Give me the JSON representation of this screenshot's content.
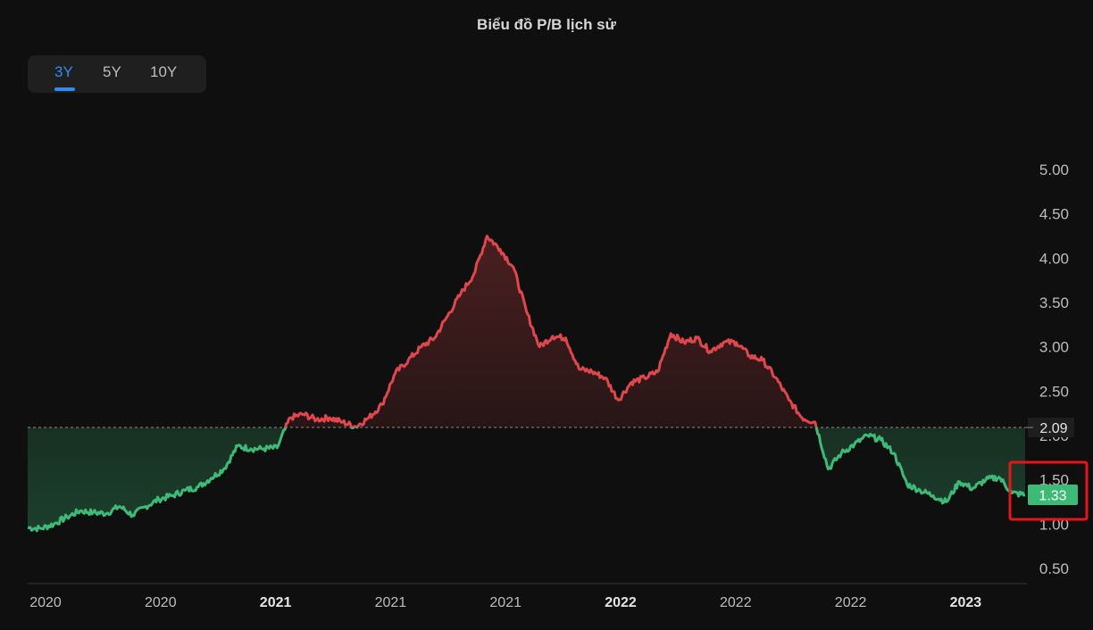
{
  "header": {
    "title": "Biểu đồ P/B lịch sử"
  },
  "range_tabs": [
    {
      "label": "3Y",
      "active": true
    },
    {
      "label": "5Y",
      "active": false
    },
    {
      "label": "10Y",
      "active": false
    }
  ],
  "colors": {
    "background": "#0f0f0f",
    "above_average": "#e0474c",
    "below_average": "#3dbb76",
    "active_tab": "#2f8cf0",
    "highlight_box": "#e5161b"
  },
  "chart_data": {
    "type": "line",
    "title": "Biểu đồ P/B lịch sử",
    "y_tick_labels": [
      "5.00",
      "4.50",
      "4.00",
      "3.50",
      "3.00",
      "2.50",
      "2.00",
      "1.50",
      "1.00",
      "0.50"
    ],
    "x_tick_labels": [
      {
        "label": "2020",
        "bold": false
      },
      {
        "label": "2020",
        "bold": false
      },
      {
        "label": "2021",
        "bold": true
      },
      {
        "label": "2021",
        "bold": false
      },
      {
        "label": "2021",
        "bold": false
      },
      {
        "label": "2022",
        "bold": true
      },
      {
        "label": "2022",
        "bold": false
      },
      {
        "label": "2022",
        "bold": false
      },
      {
        "label": "2023",
        "bold": true
      }
    ],
    "ylim": [
      0.3,
      5.25
    ],
    "average_value": 2.09,
    "average_label": "2.09",
    "current_value": 1.33,
    "current_label": "1.33",
    "series": [
      {
        "values": [
          0.96,
          0.95,
          1.0,
          1.08,
          1.15,
          1.13,
          1.12,
          1.2,
          1.1,
          1.2,
          1.28,
          1.32,
          1.38,
          1.42,
          1.52,
          1.63,
          1.88,
          1.85,
          1.85,
          1.86,
          2.2,
          2.24,
          2.18,
          2.2,
          2.15,
          2.1,
          2.2,
          2.35,
          2.7,
          2.85,
          3.0,
          3.1,
          3.35,
          3.6,
          3.82,
          4.25,
          4.1,
          3.9,
          3.4,
          3.0,
          3.12,
          3.1,
          2.75,
          2.72,
          2.65,
          2.4,
          2.6,
          2.65,
          2.72,
          3.15,
          3.05,
          3.1,
          2.95,
          3.05,
          3.05,
          2.9,
          2.85,
          2.65,
          2.4,
          2.2,
          2.15,
          1.62,
          1.8,
          1.9,
          2.0,
          1.95,
          1.8,
          1.45,
          1.38,
          1.32,
          1.25,
          1.48,
          1.4,
          1.5,
          1.53,
          1.35,
          1.33
        ]
      }
    ]
  }
}
